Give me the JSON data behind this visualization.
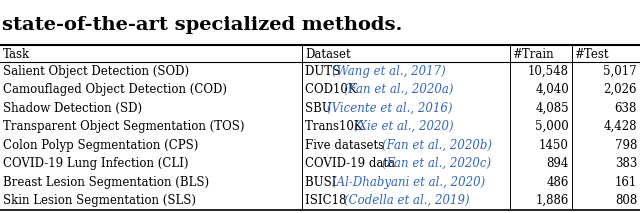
{
  "header_text": "state-of-the-art specialized methods.",
  "col_headers": [
    "Task",
    "Dataset",
    "#Train",
    "#Test"
  ],
  "rows": [
    {
      "task": "Salient Object Detection (SOD)",
      "dataset_plain": "DUTS ",
      "dataset_cite": "(Wang et al., 2017)",
      "train": "10,548",
      "test": "5,017"
    },
    {
      "task": "Camouflaged Object Detection (COD)",
      "dataset_plain": "COD10K ",
      "dataset_cite": "(Fan et al., 2020a)",
      "train": "4,040",
      "test": "2,026"
    },
    {
      "task": "Shadow Detection (SD)",
      "dataset_plain": "SBU ",
      "dataset_cite": "(Vicente et al., 2016)",
      "train": "4,085",
      "test": "638"
    },
    {
      "task": "Transparent Object Segmentation (TOS)",
      "dataset_plain": "Trans10K ",
      "dataset_cite": "(Xie et al., 2020)",
      "train": "5,000",
      "test": "4,428"
    },
    {
      "task": "Colon Polyp Segmentation (CPS)",
      "dataset_plain": "Five datasets ",
      "dataset_cite": "(Fan et al., 2020b)",
      "train": "1450",
      "test": "798"
    },
    {
      "task": "COVID-19 Lung Infection (CLI)",
      "dataset_plain": "COVID-19 data ",
      "dataset_cite": "(Fan et al., 2020c)",
      "train": "894",
      "test": "383"
    },
    {
      "task": "Breast Lesion Segmentation (BLS)",
      "dataset_plain": "BUSI ",
      "dataset_cite": "(Al-Dhabyani et al., 2020)",
      "train": "486",
      "test": "161"
    },
    {
      "task": "Skin Lesion Segmentation (SLS)",
      "dataset_plain": "ISIC18 ",
      "dataset_cite": "(Codella et al., 2019)",
      "train": "1,886",
      "test": "808"
    }
  ],
  "cite_color": "#3366BB",
  "bg_color": "#FFFFFF",
  "text_color": "#000000",
  "font_size": 8.5,
  "header_font_size": 14
}
